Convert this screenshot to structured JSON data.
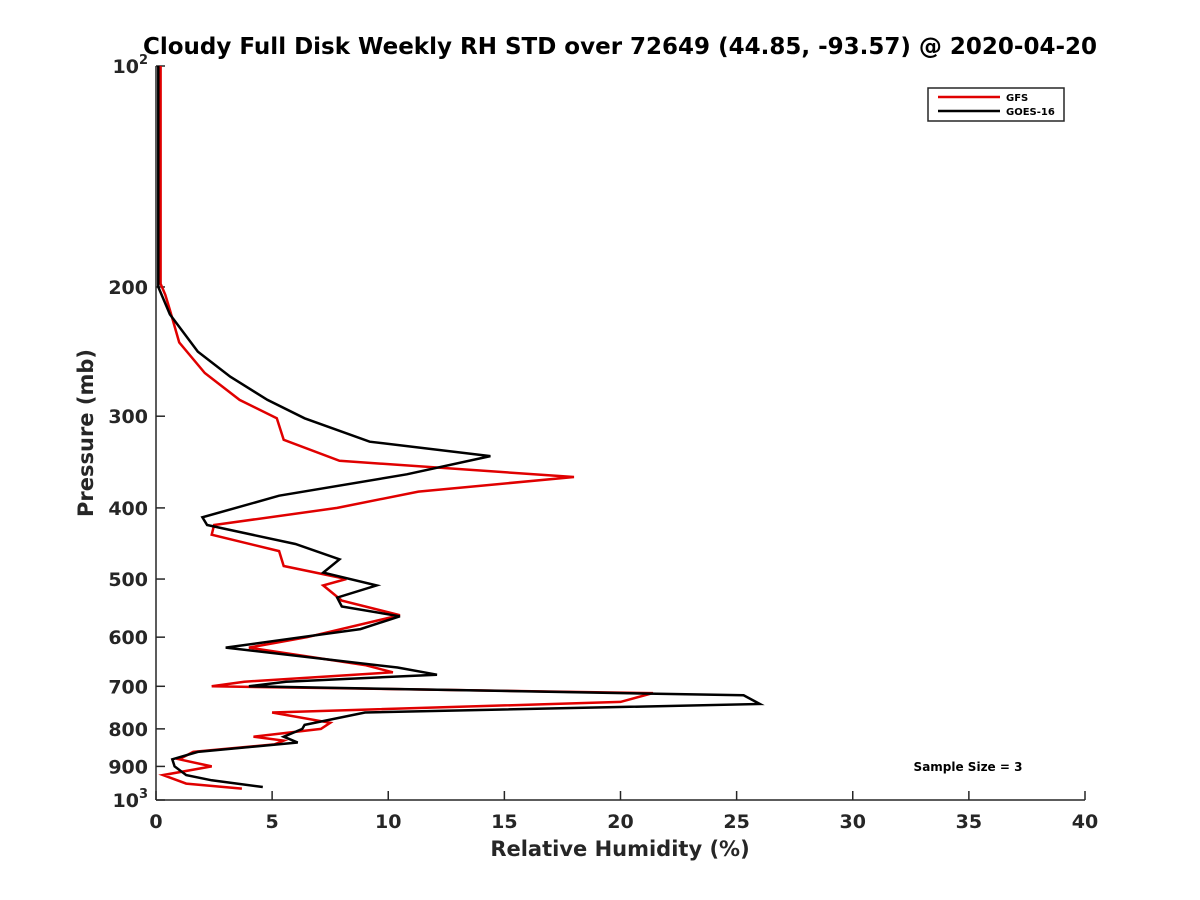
{
  "chart_data": {
    "type": "line",
    "title": "Cloudy Full Disk Weekly RH STD over 72649 (44.85, -93.57) @ 2020-04-20",
    "xlabel": "Relative Humidity (%)",
    "ylabel": "Pressure (mb)",
    "xlim": [
      0,
      40
    ],
    "ylim": [
      100,
      1000
    ],
    "yscale": "log",
    "y_reversed": true,
    "grid": false,
    "legend_position": "top-right",
    "x_ticks": [
      0,
      5,
      10,
      15,
      20,
      25,
      30,
      35,
      40
    ],
    "x_tick_labels": [
      "0",
      "5",
      "10",
      "15",
      "20",
      "25",
      "30",
      "35",
      "40"
    ],
    "y_ticks": [
      100,
      200,
      300,
      400,
      500,
      600,
      700,
      800,
      900,
      1000
    ],
    "y_tick_labels": [
      {
        "base": "10",
        "exp": "2"
      },
      {
        "base": "200",
        "exp": ""
      },
      {
        "base": "300",
        "exp": ""
      },
      {
        "base": "400",
        "exp": ""
      },
      {
        "base": "500",
        "exp": ""
      },
      {
        "base": "600",
        "exp": ""
      },
      {
        "base": "700",
        "exp": ""
      },
      {
        "base": "800",
        "exp": ""
      },
      {
        "base": "900",
        "exp": ""
      },
      {
        "base": "10",
        "exp": "3"
      }
    ],
    "annotation": "Sample Size = 3",
    "series": [
      {
        "name": "GFS",
        "color": "#e00000",
        "points": [
          [
            0.2,
            100
          ],
          [
            0.2,
            150
          ],
          [
            0.2,
            198
          ],
          [
            0.4,
            205
          ],
          [
            0.6,
            215
          ],
          [
            1.0,
            238
          ],
          [
            2.1,
            262
          ],
          [
            3.6,
            285
          ],
          [
            5.2,
            302
          ],
          [
            5.5,
            323
          ],
          [
            7.9,
            345
          ],
          [
            18.0,
            363
          ],
          [
            11.3,
            380
          ],
          [
            7.8,
            400
          ],
          [
            2.5,
            422
          ],
          [
            2.4,
            435
          ],
          [
            5.3,
            458
          ],
          [
            5.5,
            480
          ],
          [
            8.2,
            500
          ],
          [
            7.2,
            510
          ],
          [
            8.0,
            535
          ],
          [
            10.5,
            560
          ],
          [
            6.5,
            600
          ],
          [
            4.0,
            620
          ],
          [
            9.0,
            655
          ],
          [
            10.2,
            670
          ],
          [
            3.8,
            690
          ],
          [
            2.4,
            700
          ],
          [
            21.4,
            715
          ],
          [
            20.0,
            735
          ],
          [
            5.0,
            760
          ],
          [
            7.5,
            785
          ],
          [
            7.1,
            800
          ],
          [
            4.2,
            820
          ],
          [
            5.5,
            830
          ],
          [
            5.1,
            840
          ],
          [
            1.6,
            860
          ],
          [
            1.0,
            880
          ],
          [
            2.4,
            900
          ],
          [
            0.3,
            925
          ],
          [
            1.3,
            950
          ],
          [
            3.7,
            965
          ]
        ]
      },
      {
        "name": "GOES-16",
        "color": "#000000",
        "points": [
          [
            0.1,
            100
          ],
          [
            0.1,
            150
          ],
          [
            0.1,
            200
          ],
          [
            0.6,
            218
          ],
          [
            1.8,
            245
          ],
          [
            3.2,
            265
          ],
          [
            4.8,
            285
          ],
          [
            6.4,
            302
          ],
          [
            9.2,
            325
          ],
          [
            14.4,
            340
          ],
          [
            10.8,
            360
          ],
          [
            5.3,
            385
          ],
          [
            2.0,
            412
          ],
          [
            2.2,
            422
          ],
          [
            6.0,
            448
          ],
          [
            7.9,
            470
          ],
          [
            7.2,
            490
          ],
          [
            9.5,
            510
          ],
          [
            7.8,
            530
          ],
          [
            8.0,
            545
          ],
          [
            10.5,
            562
          ],
          [
            8.8,
            585
          ],
          [
            3.0,
            620
          ],
          [
            10.4,
            660
          ],
          [
            12.1,
            675
          ],
          [
            5.6,
            690
          ],
          [
            4.0,
            700
          ],
          [
            25.3,
            720
          ],
          [
            26.0,
            740
          ],
          [
            9.0,
            760
          ],
          [
            6.4,
            790
          ],
          [
            6.3,
            800
          ],
          [
            5.5,
            820
          ],
          [
            6.1,
            835
          ],
          [
            1.8,
            860
          ],
          [
            0.7,
            880
          ],
          [
            0.8,
            900
          ],
          [
            1.3,
            925
          ],
          [
            2.4,
            940
          ],
          [
            4.6,
            960
          ]
        ]
      }
    ]
  }
}
